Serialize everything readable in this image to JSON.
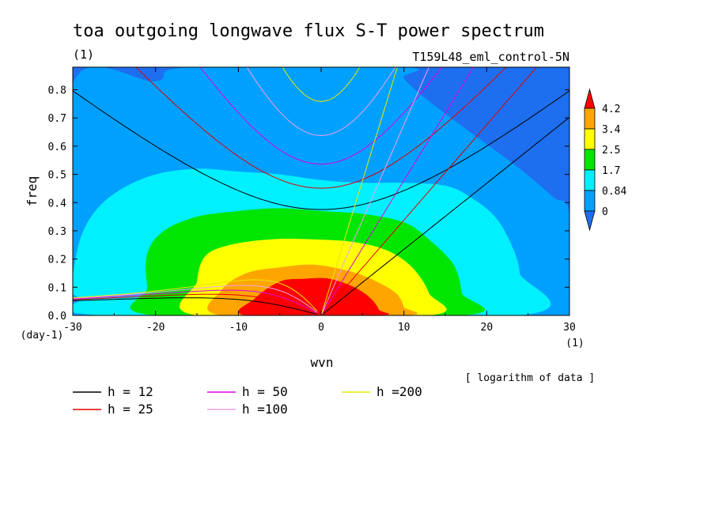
{
  "title": "toa outgoing longwave flux S-T power spectrum",
  "units_label": "(1)",
  "experiment": "T159L48_eml_control-5N",
  "note": "[ logarithm of data ]",
  "chart_data": {
    "type": "heatmap",
    "xlabel": "wvn",
    "ylabel": "freq",
    "x_unit": "(1)",
    "y_unit": "(day-1)",
    "xlim": [
      -30,
      30
    ],
    "ylim": [
      0,
      0.88
    ],
    "x_ticks": [
      -30,
      -20,
      -10,
      0,
      10,
      20,
      30
    ],
    "x_tick_labels": [
      "-30",
      "-20",
      "-10",
      "0",
      "10",
      "20",
      "30"
    ],
    "y_ticks": [
      0,
      0.1,
      0.2,
      0.3,
      0.4,
      0.5,
      0.6,
      0.7,
      0.8
    ],
    "y_tick_labels": [
      "0.0",
      "0.1",
      "0.2",
      "0.3",
      "0.4",
      "0.5",
      "0.6",
      "0.7",
      "0.8"
    ],
    "colorbar": {
      "levels": [
        0,
        0.84,
        1.7,
        2.5,
        3.4,
        4.2
      ],
      "labels": [
        "0",
        "0.84",
        "1.7",
        "2.5",
        "3.4",
        "4.2"
      ],
      "colors": [
        "#1e6fef",
        "#00a0ff",
        "#00f0ff",
        "#00e600",
        "#ffff00",
        "#ffa500",
        "#ff0000"
      ]
    },
    "background_color": "#1e6fef",
    "contour_fill": [
      {
        "level": 0,
        "color": "#00a0ff",
        "points": [
          [
            -30,
            0
          ],
          [
            30,
            0
          ],
          [
            30,
            0.36
          ],
          [
            28,
            0.42
          ],
          [
            24,
            0.52
          ],
          [
            18,
            0.65
          ],
          [
            13,
            0.76
          ],
          [
            10,
            0.84
          ],
          [
            10,
            0.88
          ],
          [
            -16,
            0.88
          ],
          [
            -20,
            0.83
          ],
          [
            -30,
            0.82
          ]
        ]
      },
      {
        "level": 0.84,
        "color": "#00f0ff",
        "points": [
          [
            -30,
            0.14
          ],
          [
            -29,
            0.28
          ],
          [
            -27,
            0.38
          ],
          [
            -24,
            0.45
          ],
          [
            -20,
            0.5
          ],
          [
            -15,
            0.52
          ],
          [
            -10,
            0.51
          ],
          [
            -5,
            0.5
          ],
          [
            0,
            0.48
          ],
          [
            5,
            0.47
          ],
          [
            10,
            0.47
          ],
          [
            15,
            0.46
          ],
          [
            18,
            0.42
          ],
          [
            21,
            0.35
          ],
          [
            23,
            0.25
          ],
          [
            24,
            0.15
          ],
          [
            24,
            0
          ],
          [
            -26,
            0
          ],
          [
            -29,
            0.06
          ],
          [
            -30,
            0.08
          ]
        ]
      },
      {
        "level": 1.7,
        "color": "#00e600",
        "points": [
          [
            -20,
            0
          ],
          [
            -21,
            0.1
          ],
          [
            -21,
            0.22
          ],
          [
            -19,
            0.3
          ],
          [
            -15,
            0.35
          ],
          [
            -10,
            0.37
          ],
          [
            -5,
            0.38
          ],
          [
            0,
            0.37
          ],
          [
            5,
            0.36
          ],
          [
            10,
            0.33
          ],
          [
            13,
            0.27
          ],
          [
            16,
            0.18
          ],
          [
            17,
            0.08
          ],
          [
            17,
            0
          ]
        ]
      },
      {
        "level": 2.5,
        "color": "#ffff00",
        "points": [
          [
            -15,
            0
          ],
          [
            -15,
            0.12
          ],
          [
            -14,
            0.21
          ],
          [
            -11,
            0.25
          ],
          [
            -6,
            0.27
          ],
          [
            -1,
            0.27
          ],
          [
            4,
            0.26
          ],
          [
            8,
            0.23
          ],
          [
            11,
            0.17
          ],
          [
            13,
            0.08
          ],
          [
            13,
            0
          ]
        ]
      },
      {
        "level": 3.4,
        "color": "#ffa500",
        "points": [
          [
            -12,
            0
          ],
          [
            -12,
            0.09
          ],
          [
            -9,
            0.15
          ],
          [
            -5,
            0.17
          ],
          [
            -1,
            0.18
          ],
          [
            3,
            0.16
          ],
          [
            6,
            0.13
          ],
          [
            9,
            0.08
          ],
          [
            10,
            0.03
          ],
          [
            10,
            0
          ]
        ]
      },
      {
        "level": 4.2,
        "color": "#ff0000",
        "points": [
          [
            -9,
            0
          ],
          [
            -8,
            0.06
          ],
          [
            -5,
            0.12
          ],
          [
            -2,
            0.13
          ],
          [
            1,
            0.13
          ],
          [
            4,
            0.1
          ],
          [
            6,
            0.06
          ],
          [
            7,
            0.02
          ],
          [
            7,
            0
          ]
        ]
      }
    ],
    "dispersion_curves": [
      {
        "name": "h = 12",
        "color": "#000000",
        "equivalent_depth": 12
      },
      {
        "name": "h = 25",
        "color": "#e00000",
        "equivalent_depth": 25
      },
      {
        "name": "h = 50",
        "color": "#e000e0",
        "equivalent_depth": 50
      },
      {
        "name": "h =100",
        "color": "#f0a0f0",
        "equivalent_depth": 100
      },
      {
        "name": "h =200",
        "color": "#e8e800",
        "equivalent_depth": 200
      }
    ]
  }
}
